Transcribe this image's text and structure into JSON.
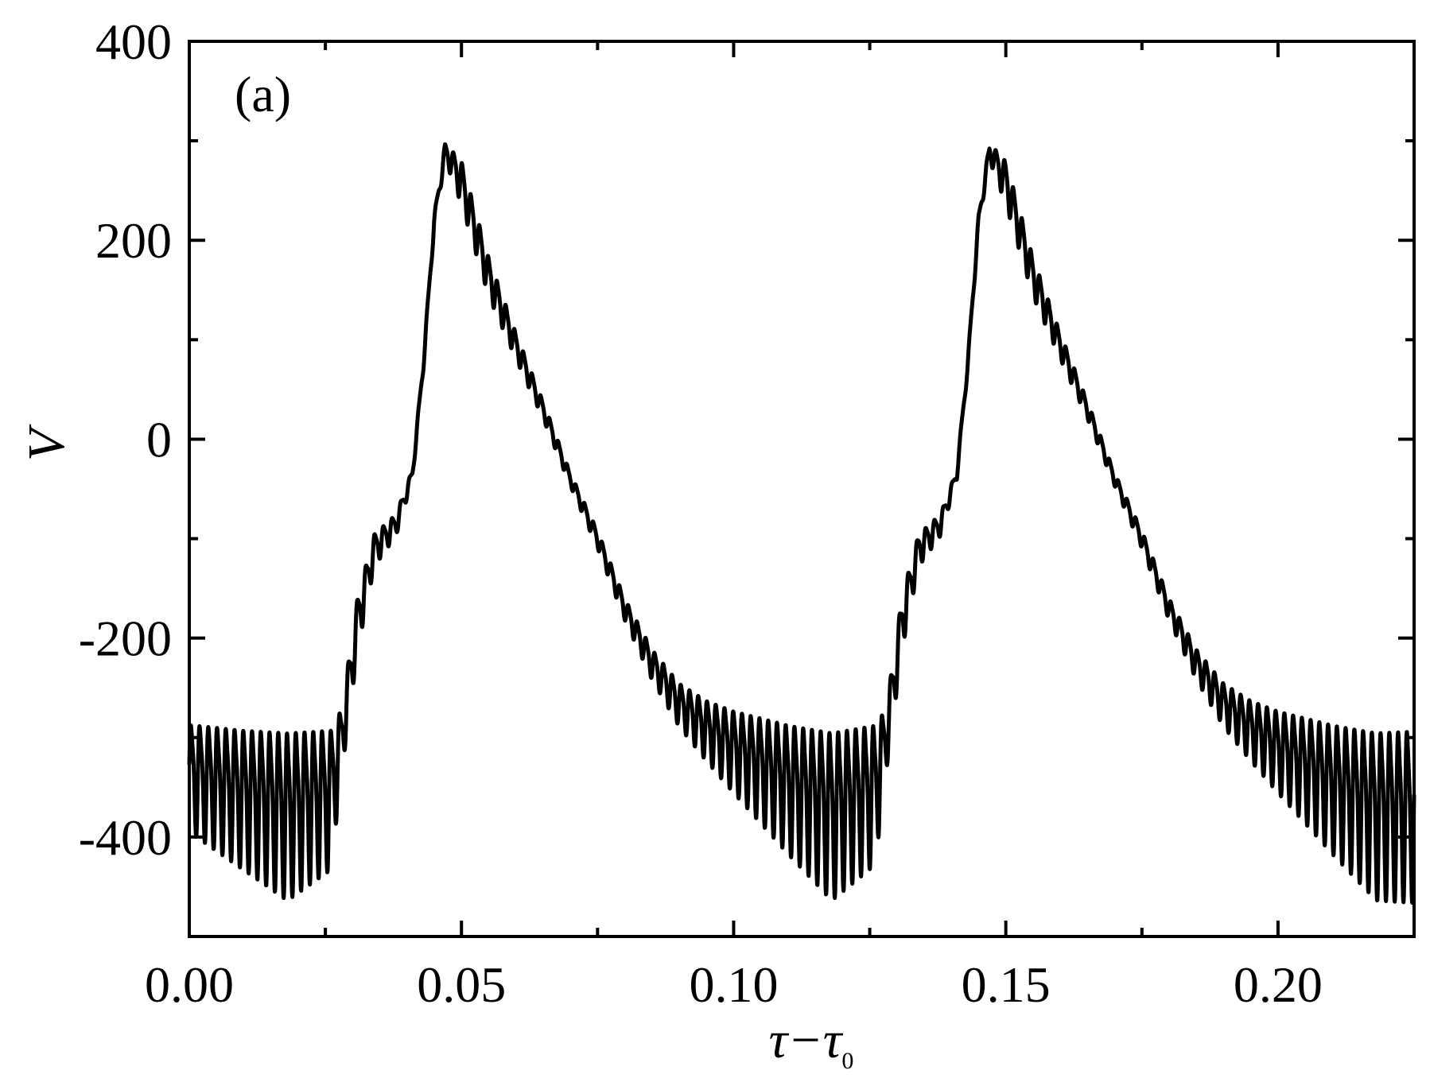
{
  "chart_data": {
    "type": "line",
    "panel_label": "(a)",
    "xlabel": {
      "main": "τ−τ",
      "subscript": "0"
    },
    "ylabel": "V",
    "xlim": [
      0.0,
      0.225
    ],
    "ylim": [
      -500,
      400
    ],
    "x_ticks": [
      0.0,
      0.05,
      0.1,
      0.15,
      0.2
    ],
    "x_tick_labels": [
      "0.00",
      "0.05",
      "0.10",
      "0.15",
      "0.20"
    ],
    "x_minor_ticks": [
      0.025,
      0.075,
      0.125,
      0.175,
      0.225
    ],
    "y_ticks": [
      400,
      200,
      0,
      -200,
      -400
    ],
    "y_tick_labels": [
      "400",
      "200",
      "0",
      "-200",
      "-400"
    ],
    "y_minor_ticks": [
      300,
      100,
      -100,
      -300
    ],
    "grid": false,
    "line_color": "#000000",
    "series": [
      {
        "period": 0.1,
        "x": [
          0.0,
          0.01,
          0.018,
          0.026,
          0.028,
          0.031,
          0.034,
          0.038,
          0.041,
          0.043,
          0.045,
          0.047,
          0.05,
          0.055,
          0.06,
          0.065,
          0.07,
          0.075,
          0.08,
          0.085,
          0.09,
          0.095,
          0.1,
          0.11,
          0.118,
          0.126,
          0.128,
          0.131,
          0.134,
          0.138,
          0.141,
          0.143,
          0.145,
          0.147,
          0.15,
          0.155,
          0.16,
          0.165,
          0.17,
          0.175,
          0.18,
          0.185,
          0.19,
          0.195,
          0.2,
          0.21,
          0.218,
          0.225
        ],
        "center": [
          -335,
          -355,
          -370,
          -355,
          -300,
          -180,
          -110,
          -85,
          -35,
          75,
          220,
          290,
          260,
          165,
          95,
          30,
          -40,
          -100,
          -170,
          -225,
          -265,
          -290,
          -310,
          -345,
          -370,
          -350,
          -300,
          -180,
          -110,
          -85,
          -35,
          75,
          220,
          290,
          260,
          165,
          95,
          30,
          -40,
          -100,
          -170,
          -225,
          -265,
          -290,
          -310,
          -345,
          -370,
          -370
        ],
        "oscillation_amplitude": [
          50,
          65,
          78,
          65,
          30,
          25,
          15,
          10,
          5,
          5,
          6,
          8,
          20,
          18,
          12,
          8,
          6,
          8,
          10,
          14,
          20,
          28,
          38,
          60,
          78,
          65,
          30,
          25,
          15,
          10,
          5,
          5,
          6,
          8,
          20,
          18,
          12,
          8,
          6,
          8,
          10,
          14,
          20,
          28,
          38,
          60,
          78,
          80
        ]
      }
    ]
  }
}
